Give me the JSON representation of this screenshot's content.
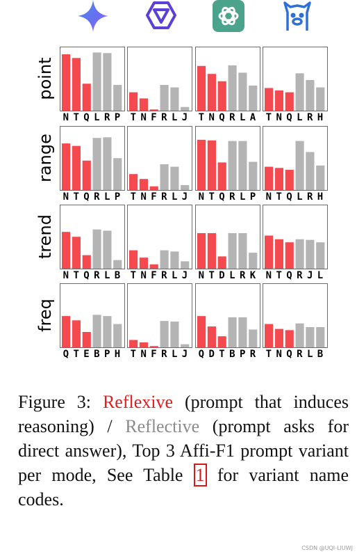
{
  "header": {
    "icons": [
      {
        "name": "gemini-logo-icon",
        "color": "#5c7cf0"
      },
      {
        "name": "qwen-logo-icon",
        "color": "#5b3fd6"
      },
      {
        "name": "openai-logo-icon",
        "color": "#4aa38a"
      },
      {
        "name": "llama-logo-icon",
        "color": "#2f6fd8"
      }
    ]
  },
  "colors": {
    "reflexive": "#f44a4f",
    "reflective": "#b4b4b4"
  },
  "chart_data": {
    "type": "bar",
    "ylim": [
      0,
      100
    ],
    "rows": [
      "point",
      "range",
      "trend",
      "freq"
    ],
    "panels": [
      [
        {
          "categories": [
            "N",
            "T",
            "Q",
            "L",
            "R",
            "P"
          ],
          "values": [
            92,
            86,
            44,
            95,
            94,
            42
          ]
        },
        {
          "categories": [
            "T",
            "N",
            "F",
            "R",
            "L",
            "J"
          ],
          "values": [
            30,
            20,
            2,
            42,
            38,
            6
          ]
        },
        {
          "categories": [
            "T",
            "N",
            "Q",
            "R",
            "L",
            "A"
          ],
          "values": [
            73,
            60,
            48,
            74,
            62,
            41
          ]
        },
        {
          "categories": [
            "T",
            "N",
            "Q",
            "L",
            "R",
            "H"
          ],
          "values": [
            37,
            33,
            30,
            61,
            50,
            38
          ]
        }
      ],
      [
        {
          "categories": [
            "N",
            "T",
            "Q",
            "R",
            "L",
            "P"
          ],
          "values": [
            76,
            72,
            48,
            85,
            86,
            52
          ]
        },
        {
          "categories": [
            "T",
            "N",
            "F",
            "R",
            "L",
            "J"
          ],
          "values": [
            26,
            18,
            6,
            42,
            38,
            8
          ]
        },
        {
          "categories": [
            "N",
            "T",
            "Q",
            "R",
            "L",
            "P"
          ],
          "values": [
            82,
            81,
            45,
            80,
            80,
            46
          ]
        },
        {
          "categories": [
            "N",
            "T",
            "Q",
            "L",
            "R",
            "H"
          ],
          "values": [
            38,
            36,
            33,
            80,
            62,
            40
          ]
        }
      ],
      [
        {
          "categories": [
            "N",
            "T",
            "Q",
            "R",
            "L",
            "B"
          ],
          "values": [
            60,
            52,
            22,
            64,
            62,
            14
          ]
        },
        {
          "categories": [
            "T",
            "N",
            "F",
            "R",
            "L",
            "J"
          ],
          "values": [
            30,
            18,
            7,
            30,
            28,
            12
          ]
        },
        {
          "categories": [
            "N",
            "T",
            "D",
            "L",
            "R",
            "K"
          ],
          "values": [
            58,
            58,
            20,
            58,
            58,
            26
          ]
        },
        {
          "categories": [
            "N",
            "T",
            "Q",
            "R",
            "J",
            "L"
          ],
          "values": [
            54,
            48,
            43,
            48,
            47,
            43
          ]
        }
      ],
      [
        {
          "categories": [
            "Q",
            "T",
            "E",
            "B",
            "P",
            "H"
          ],
          "values": [
            51,
            44,
            25,
            53,
            51,
            38
          ]
        },
        {
          "categories": [
            "T",
            "N",
            "F",
            "R",
            "L",
            "J"
          ],
          "values": [
            12,
            8,
            2,
            43,
            42,
            5
          ]
        },
        {
          "categories": [
            "Q",
            "D",
            "T",
            "B",
            "P",
            "R"
          ],
          "values": [
            51,
            34,
            18,
            49,
            49,
            29
          ]
        },
        {
          "categories": [
            "T",
            "N",
            "Q",
            "R",
            "L",
            "B"
          ],
          "values": [
            38,
            30,
            28,
            39,
            33,
            33
          ]
        }
      ]
    ]
  },
  "caption": {
    "prefix": "Figure 3: ",
    "reflexive": "Reflexive",
    "part1": " (prompt that induces reasoning) / ",
    "reflective": "Reflective",
    "part2": " (prompt asks for direct answer), Top 3 Affi-F1 prompt variant per mode, See Table ",
    "table_ref": "1",
    "part3": " for variant name codes."
  },
  "watermark": "CSDN @UQI-LIUWJ"
}
